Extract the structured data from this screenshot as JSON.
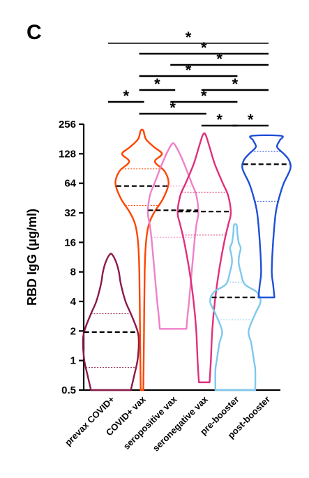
{
  "panel_label": "C",
  "chart_data": {
    "type": "violin",
    "ylabel": "RBD IgG (μg/ml)",
    "yscale": "log2",
    "ylim": [
      0.5,
      256
    ],
    "yticks": [
      0.5,
      1,
      2,
      4,
      8,
      16,
      32,
      64,
      128,
      256
    ],
    "ytick_labels": [
      "0.5",
      "1",
      "2",
      "4",
      "8",
      "16",
      "32",
      "64",
      "128",
      "256"
    ],
    "grid": false,
    "legend": "none",
    "categories": [
      "prevax COVID+",
      "COVID+ vax",
      "seropositive vax",
      "seronegative vax",
      "pre-booster",
      "post-booster"
    ],
    "series": [
      {
        "color": "#8B1A4A",
        "min": 0.5,
        "max": 12,
        "median": 1.95,
        "q1": 0.85,
        "q3": 3.0,
        "profile": [
          [
            0.5,
            0.3
          ],
          [
            0.7,
            0.35
          ],
          [
            1,
            0.4
          ],
          [
            1.5,
            0.42
          ],
          [
            2,
            0.4
          ],
          [
            3,
            0.3
          ],
          [
            4,
            0.22
          ],
          [
            6,
            0.15
          ],
          [
            8,
            0.12
          ],
          [
            10,
            0.08
          ],
          [
            12,
            0.02
          ]
        ]
      },
      {
        "color": "#FF4500",
        "min": 0.5,
        "max": 220,
        "median": 60,
        "q1": 38,
        "q3": 90,
        "profile": [
          [
            0.5,
            0.02
          ],
          [
            2,
            0.03
          ],
          [
            8,
            0.04
          ],
          [
            16,
            0.06
          ],
          [
            24,
            0.1
          ],
          [
            32,
            0.18
          ],
          [
            45,
            0.32
          ],
          [
            64,
            0.4
          ],
          [
            85,
            0.34
          ],
          [
            100,
            0.22
          ],
          [
            110,
            0.2
          ],
          [
            128,
            0.3
          ],
          [
            150,
            0.18
          ],
          [
            180,
            0.06
          ],
          [
            220,
            0.02
          ]
        ]
      },
      {
        "color": "#F080C8",
        "min": 2.1,
        "max": 160,
        "median": 34,
        "q1": 18,
        "q3": 60,
        "profile": [
          [
            2.1,
            0.2
          ],
          [
            3,
            0.22
          ],
          [
            4,
            0.24
          ],
          [
            8,
            0.28
          ],
          [
            16,
            0.32
          ],
          [
            24,
            0.35
          ],
          [
            32,
            0.38
          ],
          [
            48,
            0.35
          ],
          [
            64,
            0.28
          ],
          [
            96,
            0.18
          ],
          [
            128,
            0.1
          ],
          [
            160,
            0.02
          ]
        ]
      },
      {
        "color": "#E0307A",
        "min": 0.6,
        "max": 200,
        "median": 33,
        "q1": 19,
        "q3": 52,
        "profile": [
          [
            0.6,
            0.08
          ],
          [
            1,
            0.1
          ],
          [
            2,
            0.12
          ],
          [
            4,
            0.16
          ],
          [
            8,
            0.22
          ],
          [
            16,
            0.3
          ],
          [
            24,
            0.36
          ],
          [
            32,
            0.4
          ],
          [
            48,
            0.36
          ],
          [
            64,
            0.28
          ],
          [
            100,
            0.16
          ],
          [
            150,
            0.08
          ],
          [
            200,
            0.02
          ]
        ]
      },
      {
        "color": "#7EC8EE",
        "min": 0.5,
        "max": 24,
        "median": 4.4,
        "q1": 2.6,
        "q3": 6.3,
        "profile": [
          [
            0.5,
            0.3
          ],
          [
            0.8,
            0.3
          ],
          [
            1,
            0.28
          ],
          [
            1.5,
            0.24
          ],
          [
            2,
            0.2
          ],
          [
            3,
            0.3
          ],
          [
            4,
            0.38
          ],
          [
            5,
            0.32
          ],
          [
            6,
            0.14
          ],
          [
            8,
            0.08
          ],
          [
            10,
            0.05
          ],
          [
            12,
            0.06
          ],
          [
            14,
            0.08
          ],
          [
            16,
            0.05
          ],
          [
            20,
            0.03
          ],
          [
            24,
            0.02
          ]
        ]
      },
      {
        "color": "#1E4FD8",
        "min": 4.4,
        "max": 195,
        "median": 100,
        "q1": 42,
        "q3": 135,
        "profile": [
          [
            4.4,
            0.12
          ],
          [
            6,
            0.1
          ],
          [
            8,
            0.08
          ],
          [
            16,
            0.1
          ],
          [
            32,
            0.14
          ],
          [
            48,
            0.2
          ],
          [
            64,
            0.26
          ],
          [
            90,
            0.36
          ],
          [
            110,
            0.34
          ],
          [
            128,
            0.26
          ],
          [
            150,
            0.16
          ],
          [
            175,
            0.2
          ],
          [
            195,
            0.22
          ]
        ]
      }
    ],
    "significance": [
      {
        "from": 0,
        "to": 5,
        "label": "*"
      },
      {
        "from": 1,
        "to": 5,
        "label": "*"
      },
      {
        "from": 2,
        "to": 5,
        "label": "*"
      },
      {
        "from": 1,
        "to": 4,
        "label": "*"
      },
      {
        "from": 1,
        "to": 2,
        "label": "*"
      },
      {
        "from": 3,
        "to": 5,
        "label": "*"
      },
      {
        "from": 0,
        "to": 1,
        "label": "*"
      },
      {
        "from": 2,
        "to": 4,
        "label": "*"
      },
      {
        "from": 1,
        "to": 3,
        "label": "*"
      },
      {
        "from": 3,
        "to": 4,
        "label": "*"
      },
      {
        "from": 4,
        "to": 5,
        "label": "*"
      }
    ]
  }
}
